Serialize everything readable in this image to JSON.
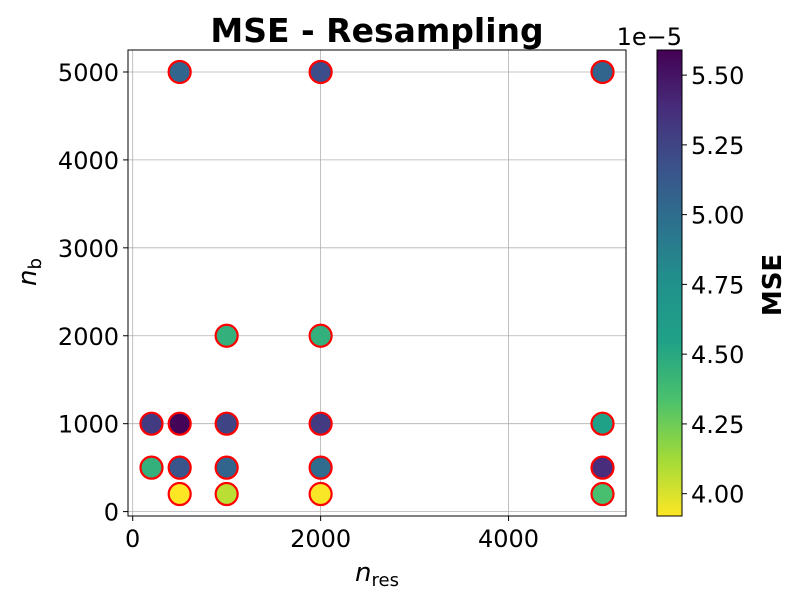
{
  "chart_data": {
    "type": "scatter",
    "title": "MSE - Resampling",
    "xlabel": {
      "base": "n",
      "sub": "res"
    },
    "ylabel": {
      "base": "n",
      "sub": "b"
    },
    "xlim": [
      -50,
      5250
    ],
    "ylim": [
      -50,
      5250
    ],
    "xticks": [
      0,
      2000,
      4000
    ],
    "yticks": [
      0,
      1000,
      2000,
      3000,
      4000,
      5000
    ],
    "xtick_labels": [
      "0",
      "2000",
      "4000"
    ],
    "ytick_labels": [
      "0",
      "1000",
      "2000",
      "3000",
      "4000",
      "5000"
    ],
    "grid": true,
    "marker_edge_color": "#ff0000",
    "colormap": "viridis_r",
    "colorbar": {
      "label": "MSE",
      "offset_text": "1e−5",
      "range": [
        3.92,
        5.59
      ],
      "ticks": [
        4.0,
        4.25,
        4.5,
        4.75,
        5.0,
        5.25,
        5.5
      ],
      "tick_labels": [
        "4.00",
        "4.25",
        "4.50",
        "4.75",
        "5.00",
        "5.25",
        "5.50"
      ]
    },
    "points": [
      {
        "x": 500,
        "y": 5000,
        "mse": 5.05
      },
      {
        "x": 2000,
        "y": 5000,
        "mse": 5.2
      },
      {
        "x": 5000,
        "y": 5000,
        "mse": 5.05
      },
      {
        "x": 1000,
        "y": 2000,
        "mse": 4.45
      },
      {
        "x": 2000,
        "y": 2000,
        "mse": 4.45
      },
      {
        "x": 200,
        "y": 1000,
        "mse": 5.3
      },
      {
        "x": 500,
        "y": 1000,
        "mse": 5.57
      },
      {
        "x": 1000,
        "y": 1000,
        "mse": 5.25
      },
      {
        "x": 2000,
        "y": 1000,
        "mse": 5.3
      },
      {
        "x": 5000,
        "y": 1000,
        "mse": 4.55
      },
      {
        "x": 200,
        "y": 500,
        "mse": 4.45
      },
      {
        "x": 500,
        "y": 500,
        "mse": 5.15
      },
      {
        "x": 1000,
        "y": 500,
        "mse": 5.05
      },
      {
        "x": 2000,
        "y": 500,
        "mse": 5.0
      },
      {
        "x": 5000,
        "y": 500,
        "mse": 5.38
      },
      {
        "x": 500,
        "y": 200,
        "mse": 3.92
      },
      {
        "x": 1000,
        "y": 200,
        "mse": 4.07
      },
      {
        "x": 2000,
        "y": 200,
        "mse": 3.93
      },
      {
        "x": 5000,
        "y": 200,
        "mse": 4.35
      }
    ]
  }
}
